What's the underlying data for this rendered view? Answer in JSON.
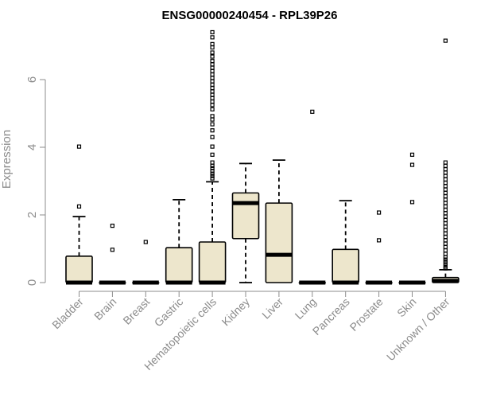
{
  "chart_data": {
    "type": "box",
    "title": "ENSG00000240454 - RPL39P26",
    "xlabel": "",
    "ylabel": "Expression",
    "ylim": [
      0,
      7.5
    ],
    "yticks": [
      0,
      2,
      4,
      6
    ],
    "categories": [
      "Bladder",
      "Brain",
      "Breast",
      "Gastric",
      "Hematopoietic cells",
      "Kidney",
      "Liver",
      "Lung",
      "Pancreas",
      "Prostate",
      "Skin",
      "Unknown / Other"
    ],
    "boxes": [
      {
        "name": "Bladder",
        "whisker_low": 0,
        "q1": 0,
        "median": 0,
        "q3": 0.78,
        "whisker_high": 1.95,
        "outliers": [
          4.02,
          2.25
        ]
      },
      {
        "name": "Brain",
        "whisker_low": 0,
        "q1": 0,
        "median": 0,
        "q3": 0,
        "whisker_high": 0,
        "outliers": [
          1.68,
          0.97
        ]
      },
      {
        "name": "Breast",
        "whisker_low": 0,
        "q1": 0,
        "median": 0,
        "q3": 0,
        "whisker_high": 0,
        "outliers": [
          1.2
        ]
      },
      {
        "name": "Gastric",
        "whisker_low": 0,
        "q1": 0,
        "median": 0,
        "q3": 1.03,
        "whisker_high": 2.45,
        "outliers": []
      },
      {
        "name": "Hematopoietic cells",
        "whisker_low": 0,
        "q1": 0,
        "median": 0,
        "q3": 1.2,
        "whisker_high": 2.98,
        "outliers": [
          7.4,
          7.25,
          7.05,
          6.95,
          6.8,
          6.68,
          6.55,
          6.45,
          6.35,
          6.25,
          6.15,
          6.05,
          5.95,
          5.85,
          5.75,
          5.65,
          5.55,
          5.45,
          5.35,
          5.25,
          5.12,
          4.92,
          4.82,
          4.68,
          4.5,
          4.3,
          4.02,
          3.78,
          3.55,
          3.45,
          3.38,
          3.3,
          3.22,
          3.15,
          3.08
        ]
      },
      {
        "name": "Kidney",
        "whisker_low": 0,
        "q1": 1.3,
        "median": 2.35,
        "q3": 2.65,
        "whisker_high": 3.52,
        "outliers": []
      },
      {
        "name": "Liver",
        "whisker_low": 0,
        "q1": 0,
        "median": 0.82,
        "q3": 2.35,
        "whisker_high": 3.62,
        "outliers": []
      },
      {
        "name": "Lung",
        "whisker_low": 0,
        "q1": 0,
        "median": 0,
        "q3": 0,
        "whisker_high": 0,
        "outliers": [
          5.05
        ]
      },
      {
        "name": "Pancreas",
        "whisker_low": 0,
        "q1": 0,
        "median": 0,
        "q3": 0.98,
        "whisker_high": 2.42,
        "outliers": []
      },
      {
        "name": "Prostate",
        "whisker_low": 0,
        "q1": 0,
        "median": 0,
        "q3": 0,
        "whisker_high": 0,
        "outliers": [
          2.07,
          1.25
        ]
      },
      {
        "name": "Skin",
        "whisker_low": 0,
        "q1": 0,
        "median": 0,
        "q3": 0,
        "whisker_high": 0,
        "outliers": [
          3.78,
          3.48,
          2.38
        ]
      },
      {
        "name": "Unknown / Other",
        "whisker_low": 0,
        "q1": 0,
        "median": 0.05,
        "q3": 0.15,
        "whisker_high": 0.38,
        "outliers": [
          7.15,
          3.55,
          3.45,
          3.35,
          3.25,
          3.15,
          3.05,
          2.95,
          2.85,
          2.75,
          2.65,
          2.55,
          2.45,
          2.35,
          2.25,
          2.15,
          2.05,
          1.95,
          1.85,
          1.75,
          1.65,
          1.55,
          1.45,
          1.35,
          1.25,
          1.15,
          1.05,
          0.95,
          0.85,
          0.75,
          0.68,
          0.61,
          0.54,
          0.47,
          0.42
        ]
      }
    ]
  }
}
